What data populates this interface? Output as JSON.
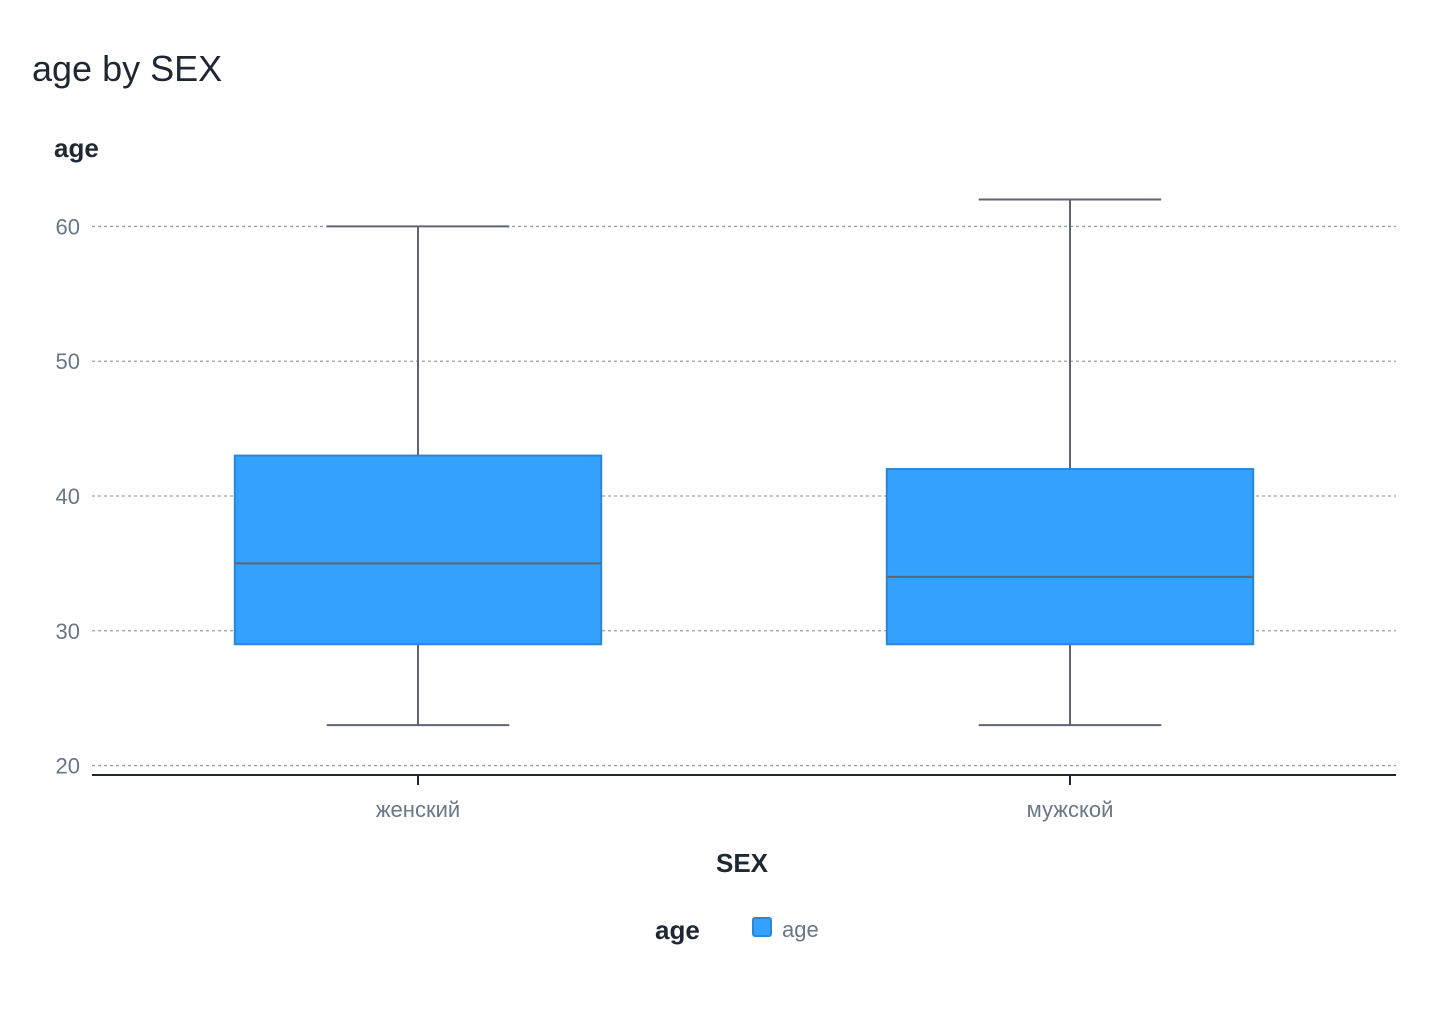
{
  "title": "age by SEX",
  "colors": {
    "box_fill": "#33a1fd",
    "box_stroke": "#2b87d6",
    "whisker": "#5f6670",
    "grid": "#9aa0a6",
    "axis": "#1f2733"
  },
  "chart_data": {
    "type": "box",
    "title": "age by SEX",
    "xlabel": "SEX",
    "ylabel": "age",
    "categories": [
      "женский",
      "мужской"
    ],
    "ylim": [
      19.3,
      63
    ],
    "yticks": [
      20,
      30,
      40,
      50,
      60
    ],
    "grid": true,
    "legend_position": "bottom",
    "legend": {
      "title": "age",
      "items": [
        "age"
      ]
    },
    "series": [
      {
        "name": "age",
        "boxes": [
          {
            "category": "женский",
            "min": 23,
            "q1": 29,
            "median": 35,
            "q3": 43,
            "max": 60
          },
          {
            "category": "мужской",
            "min": 23,
            "q1": 29,
            "median": 34,
            "q3": 42,
            "max": 62
          }
        ]
      }
    ]
  }
}
